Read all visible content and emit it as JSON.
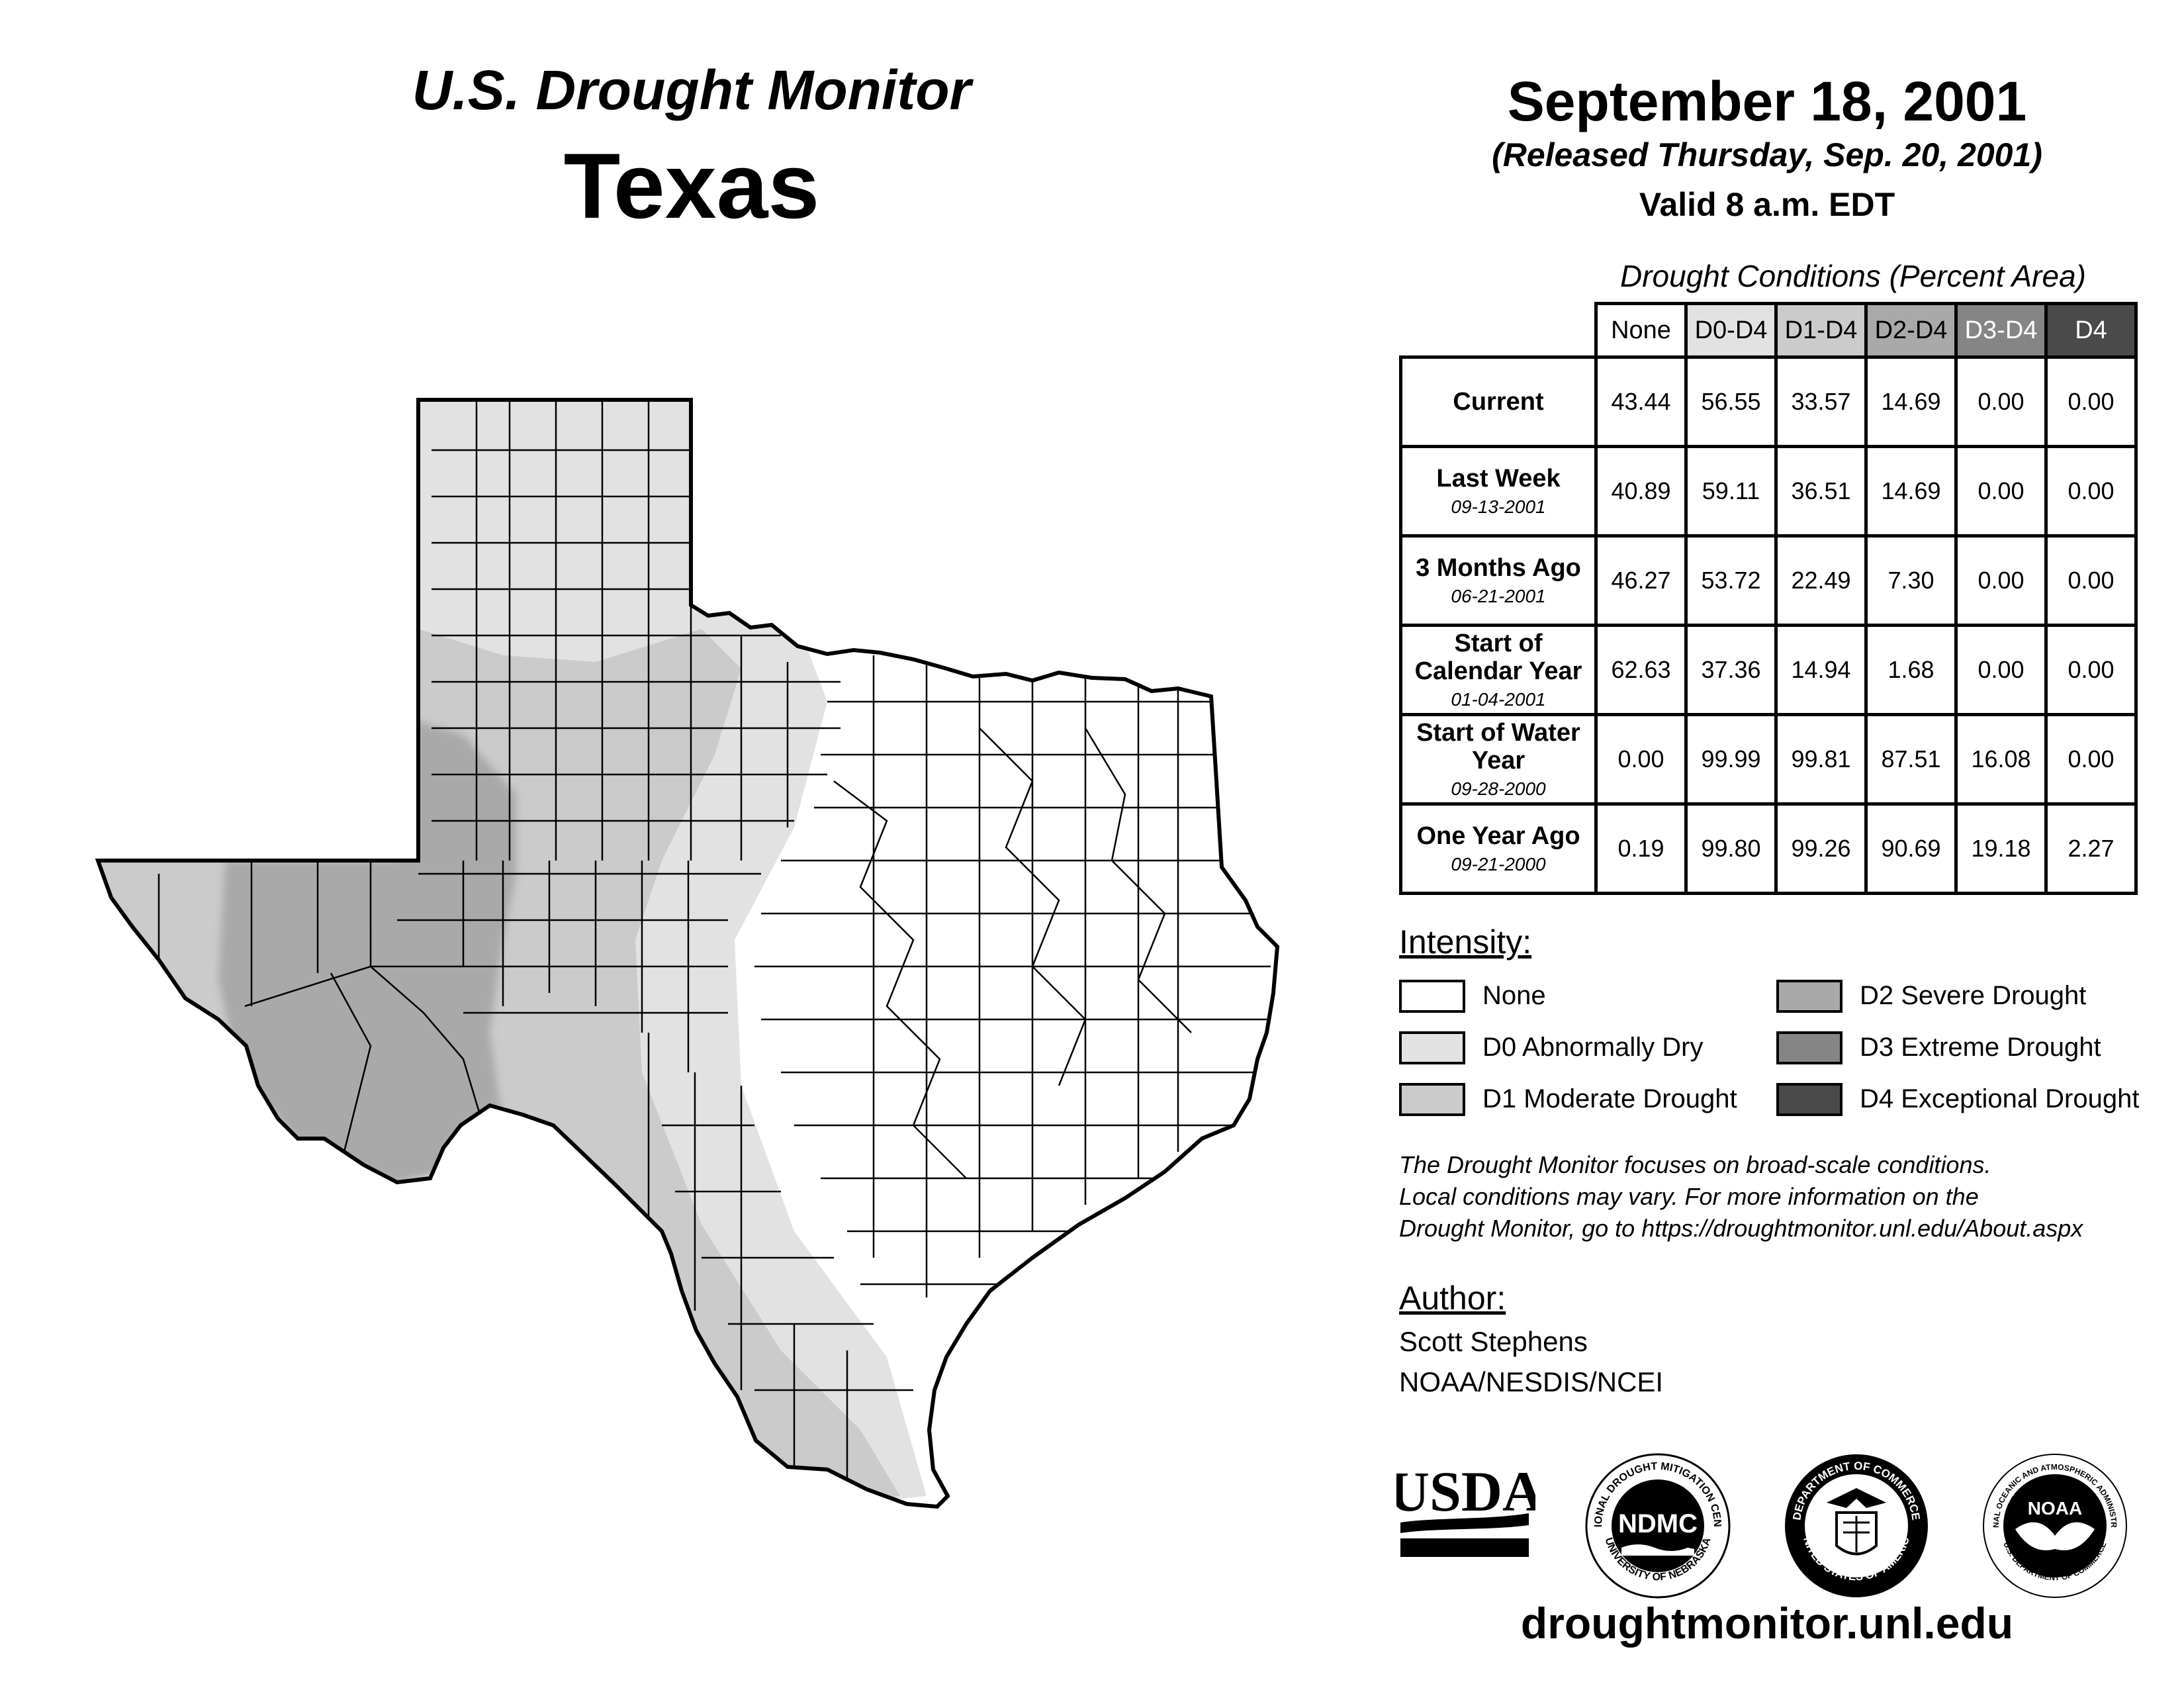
{
  "header": {
    "subtitle": "U.S. Drought Monitor",
    "state": "Texas",
    "date": "September 18, 2001",
    "released": "(Released Thursday, Sep. 20, 2001)",
    "valid": "Valid 8 a.m. EDT"
  },
  "table": {
    "title": "Drought Conditions (Percent Area)",
    "columns": [
      "None",
      "D0-D4",
      "D1-D4",
      "D2-D4",
      "D3-D4",
      "D4"
    ],
    "column_colors": [
      "#ffffff",
      "#e2e2e2",
      "#cbcbcb",
      "#a9a9a9",
      "#858585",
      "#4a4a4a"
    ],
    "rows": [
      {
        "label": "Current",
        "sub": "",
        "values": [
          "43.44",
          "56.55",
          "33.57",
          "14.69",
          "0.00",
          "0.00"
        ]
      },
      {
        "label": "Last Week",
        "sub": "09-13-2001",
        "values": [
          "40.89",
          "59.11",
          "36.51",
          "14.69",
          "0.00",
          "0.00"
        ]
      },
      {
        "label": "3 Months Ago",
        "sub": "06-21-2001",
        "values": [
          "46.27",
          "53.72",
          "22.49",
          "7.30",
          "0.00",
          "0.00"
        ]
      },
      {
        "label": "Start of Calendar Year",
        "sub": "01-04-2001",
        "values": [
          "62.63",
          "37.36",
          "14.94",
          "1.68",
          "0.00",
          "0.00"
        ]
      },
      {
        "label": "Start of Water Year",
        "sub": "09-28-2000",
        "values": [
          "0.00",
          "99.99",
          "99.81",
          "87.51",
          "16.08",
          "0.00"
        ]
      },
      {
        "label": "One Year Ago",
        "sub": "09-21-2000",
        "values": [
          "0.19",
          "99.80",
          "99.26",
          "90.69",
          "19.18",
          "2.27"
        ]
      }
    ]
  },
  "legend": {
    "title": "Intensity:",
    "items": [
      {
        "label": "None",
        "color": "#ffffff"
      },
      {
        "label": "D0 Abnormally Dry",
        "color": "#e2e2e2"
      },
      {
        "label": "D1 Moderate Drought",
        "color": "#cbcbcb"
      },
      {
        "label": "D2 Severe Drought",
        "color": "#a9a9a9"
      },
      {
        "label": "D3 Extreme Drought",
        "color": "#858585"
      },
      {
        "label": "D4 Exceptional Drought",
        "color": "#4a4a4a"
      }
    ]
  },
  "note": [
    "The Drought Monitor focuses on broad-scale conditions.",
    "Local conditions may vary. For more information on the",
    "Drought Monitor, go to https://droughtmonitor.unl.edu/About.aspx"
  ],
  "author": {
    "title": "Author:",
    "name": "Scott Stephens",
    "org": "NOAA/NESDIS/NCEI"
  },
  "logos": {
    "usda": "USDA",
    "ndmc": "NDMC",
    "ndmc_ring": "NATIONAL DROUGHT MITIGATION CENTER",
    "ndmc_ring_bottom": "UNIVERSITY OF NEBRASKA",
    "doc_ring": "DEPARTMENT OF COMMERCE",
    "doc_ring_bottom": "UNITED STATES OF AMERICA",
    "noaa": "NOAA",
    "noaa_ring": "NATIONAL OCEANIC AND ATMOSPHERIC ADMINISTRATION",
    "noaa_ring_bottom": "U.S. DEPARTMENT OF COMMERCE"
  },
  "website": "droughtmonitor.unl.edu"
}
